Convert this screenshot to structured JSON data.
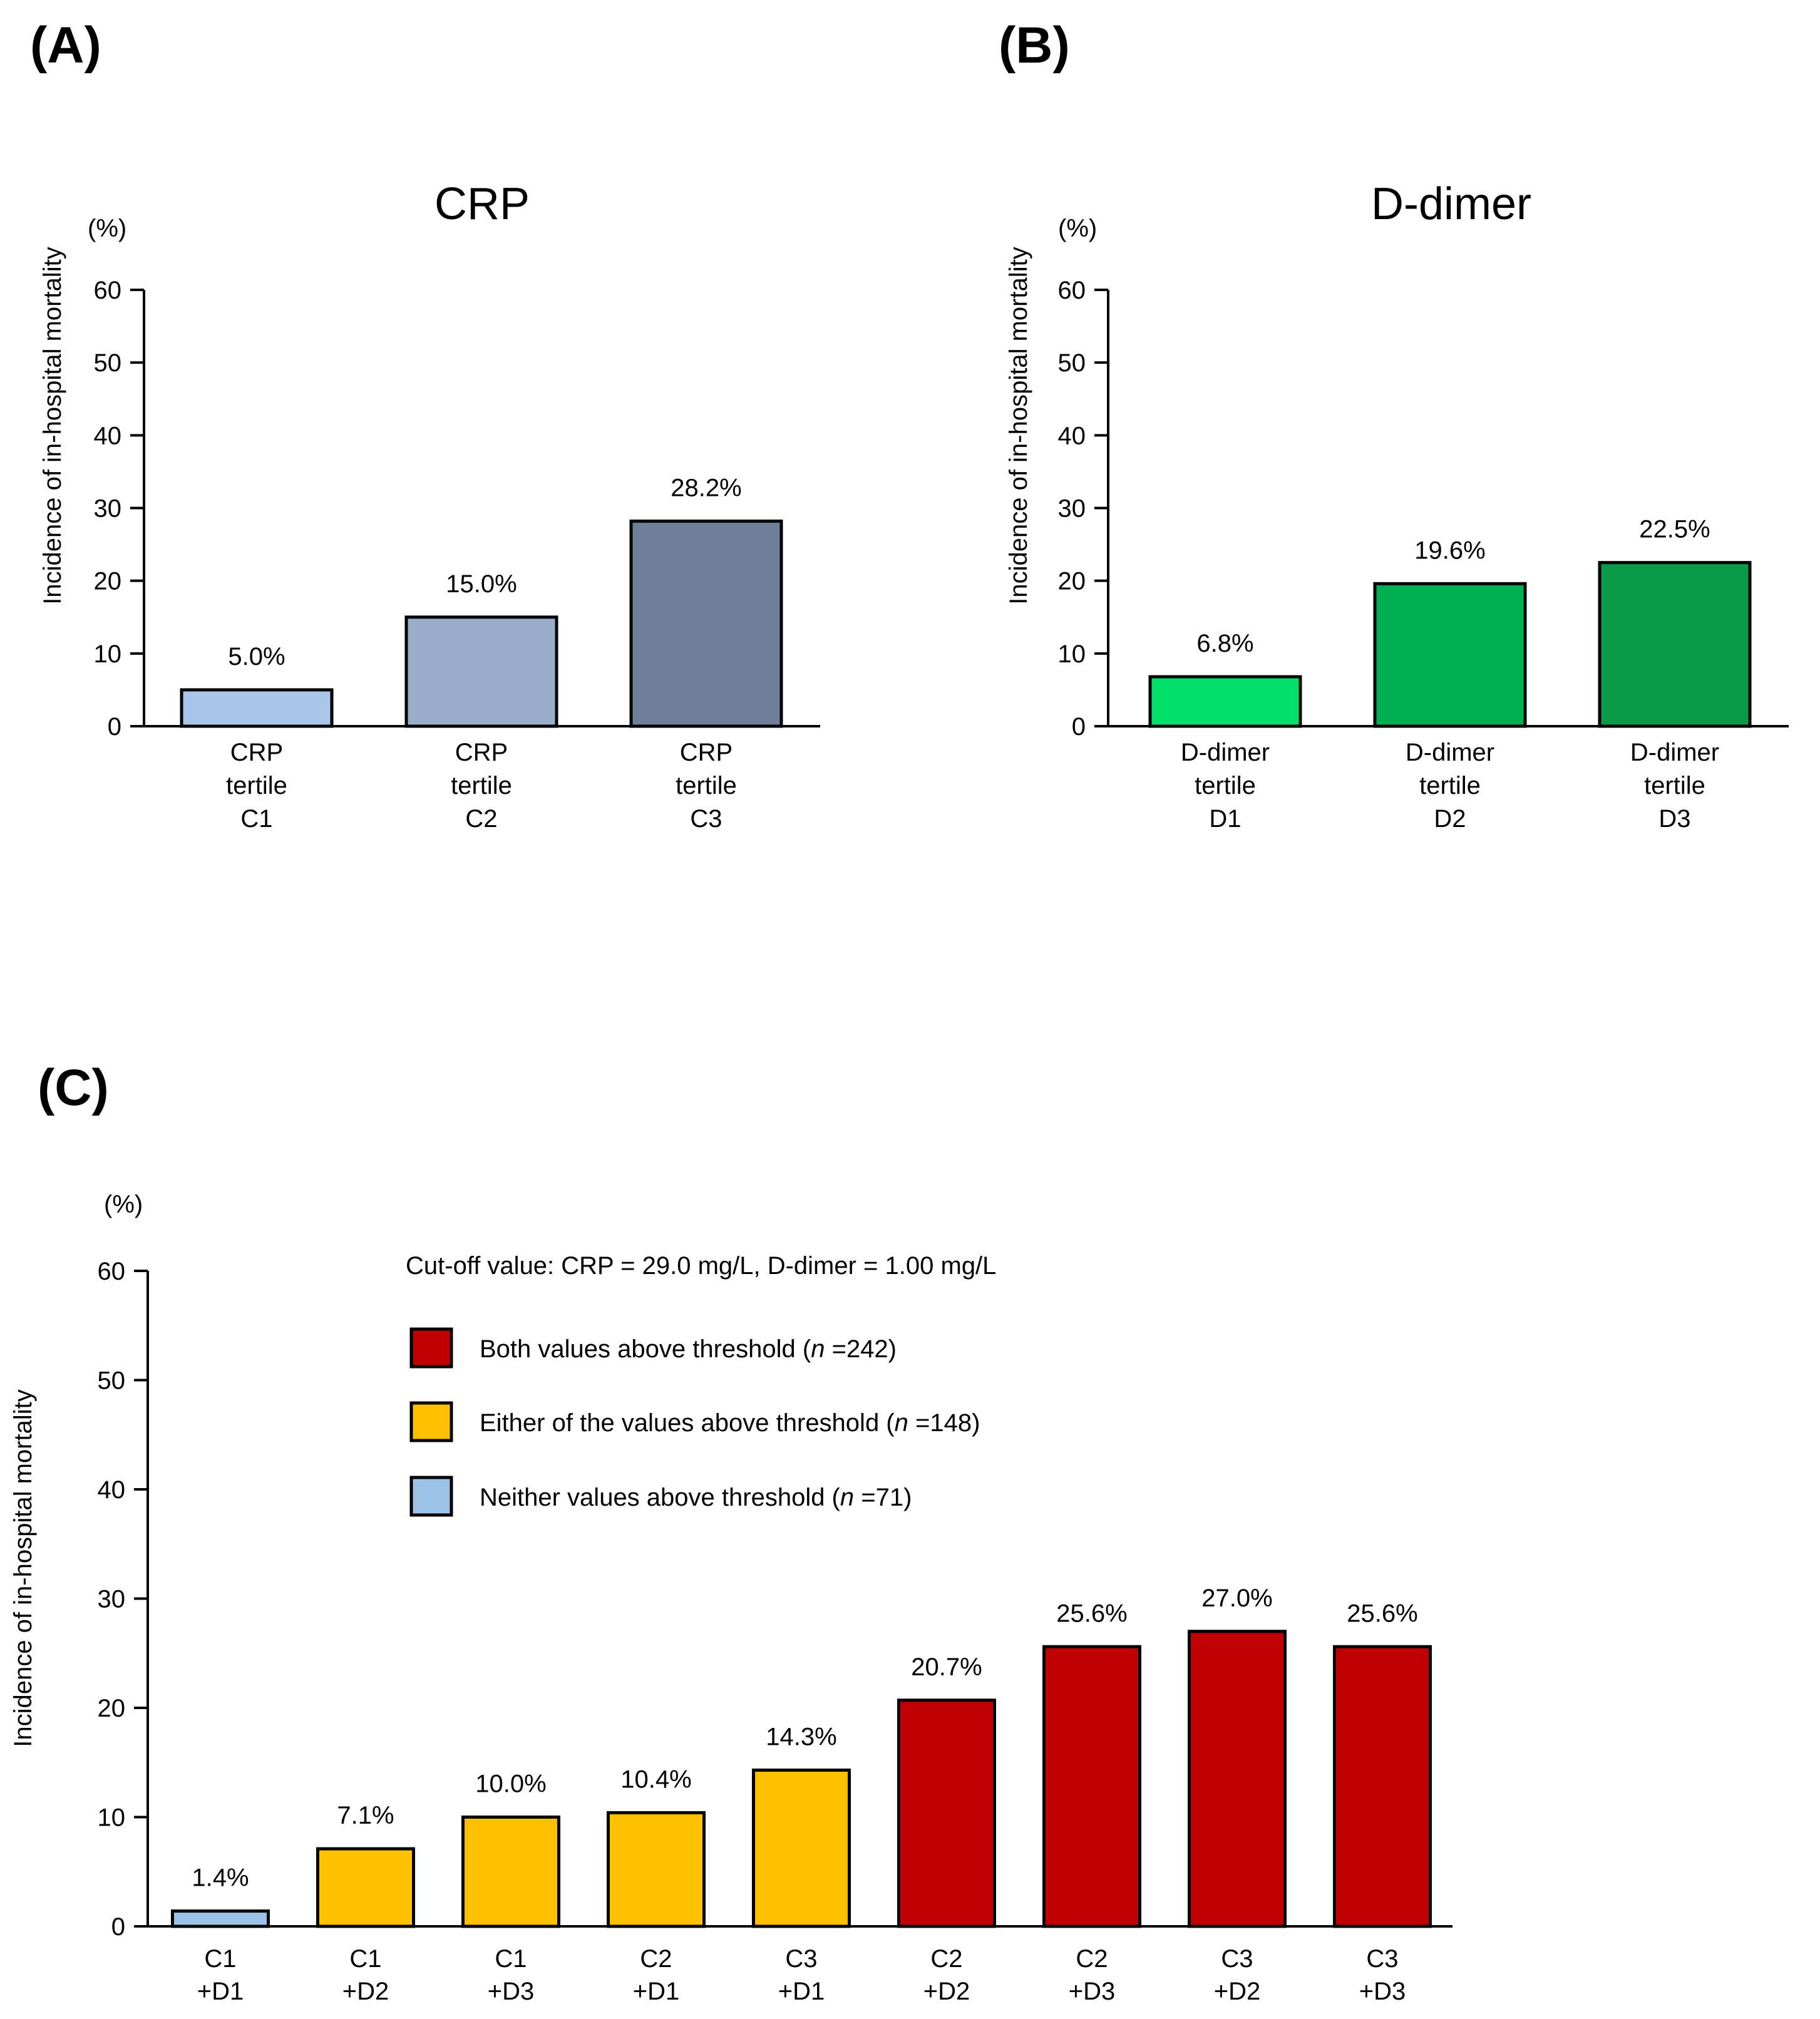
{
  "panel_labels": {
    "a": "(A)",
    "b": "(B)",
    "c": "(C)"
  },
  "unit_label": "(%)",
  "colors": {
    "crp": [
      "#a9c5ea",
      "#9aaecc",
      "#6e7f97"
    ],
    "ddimer": [
      "#00e06a",
      "#00b050",
      "#0a9a48"
    ],
    "neither": "#9cc2e6",
    "either": "#ffc000",
    "both": "#c00000"
  },
  "chart_data": [
    {
      "id": "crp",
      "type": "bar",
      "title": "CRP",
      "xlabel": "",
      "ylabel": "Incidence of in-hospital mortality",
      "ylim": [
        0,
        60
      ],
      "yticks": [
        0,
        10,
        20,
        30,
        40,
        50,
        60
      ],
      "categories": [
        [
          "CRP",
          "tertile",
          "C1"
        ],
        [
          "CRP",
          "tertile",
          "C2"
        ],
        [
          "CRP",
          "tertile",
          "C3"
        ]
      ],
      "values": [
        5.0,
        15.0,
        28.2
      ],
      "value_labels": [
        "5.0%",
        "15.0%",
        "28.2%"
      ]
    },
    {
      "id": "ddimer",
      "type": "bar",
      "title": "D-dimer",
      "xlabel": "",
      "ylabel": "Incidence of in-hospital mortality",
      "ylim": [
        0,
        60
      ],
      "yticks": [
        0,
        10,
        20,
        30,
        40,
        50,
        60
      ],
      "categories": [
        [
          "D-dimer",
          "tertile",
          "D1"
        ],
        [
          "D-dimer",
          "tertile",
          "D2"
        ],
        [
          "D-dimer",
          "tertile",
          "D3"
        ]
      ],
      "values": [
        6.8,
        19.6,
        22.5
      ],
      "value_labels": [
        "6.8%",
        "19.6%",
        "22.5%"
      ]
    },
    {
      "id": "combo",
      "type": "bar",
      "title": "",
      "xlabel": "",
      "ylabel": "Incidence of in-hospital mortality",
      "ylim": [
        0,
        60
      ],
      "yticks": [
        0,
        10,
        20,
        30,
        40,
        50,
        60
      ],
      "categories": [
        [
          "C1",
          "+D1"
        ],
        [
          "C1",
          "+D2"
        ],
        [
          "C1",
          "+D3"
        ],
        [
          "C2",
          "+D1"
        ],
        [
          "C3",
          "+D1"
        ],
        [
          "C2",
          "+D2"
        ],
        [
          "C2",
          "+D3"
        ],
        [
          "C3",
          "+D2"
        ],
        [
          "C3",
          "+D3"
        ]
      ],
      "values": [
        1.4,
        7.1,
        10.0,
        10.4,
        14.3,
        20.7,
        25.6,
        27.0,
        25.6
      ],
      "value_labels": [
        "1.4%",
        "7.1%",
        "10.0%",
        "10.4%",
        "14.3%",
        "20.7%",
        "25.6%",
        "27.0%",
        "25.6%"
      ],
      "groups": [
        "neither",
        "either",
        "either",
        "either",
        "either",
        "both",
        "both",
        "both",
        "both"
      ],
      "annotation": "Cut-off value: CRP = 29.0 mg/L, D-dimer = 1.00 mg/L",
      "legend": [
        {
          "group": "both",
          "prefix": "Both values above threshold (",
          "n_label": "n",
          "suffix": " =242)"
        },
        {
          "group": "either",
          "prefix": "Either of the values above threshold (",
          "n_label": "n",
          "suffix": " =148)"
        },
        {
          "group": "neither",
          "prefix": "Neither values above threshold (",
          "n_label": "n",
          "suffix": " =71)"
        }
      ]
    }
  ]
}
